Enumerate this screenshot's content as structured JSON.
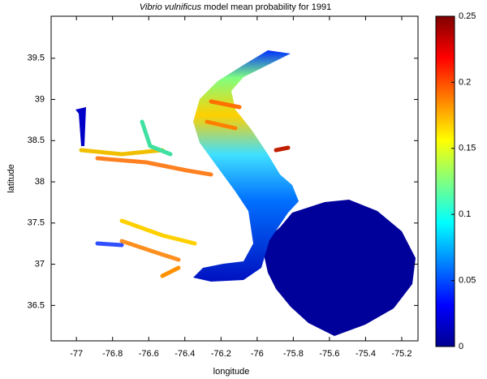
{
  "chart_data": {
    "type": "map",
    "title_parts": [
      "Vibrio vulnificus",
      "model mean probability for 1991"
    ],
    "xlabel": "longitude",
    "ylabel": "latitude",
    "xlim": [
      -77.14,
      -75.11
    ],
    "xticks": [
      -77,
      -76.8,
      -76.6,
      -76.4,
      -76.2,
      -76,
      -75.8,
      -75.6,
      -75.4,
      -75.2
    ],
    "ylim": [
      36.07,
      40.01
    ],
    "yticks": [
      36.5,
      37,
      37.5,
      38,
      38.5,
      39,
      39.5
    ],
    "clim": [
      0,
      0.25
    ],
    "cticks": [
      0,
      0.05,
      0.1,
      0.15,
      0.2,
      0.25
    ],
    "colormap": [
      "#00008f",
      "#0000ff",
      "#0080ff",
      "#00ffff",
      "#80ff80",
      "#ffff00",
      "#ff8000",
      "#ff0000",
      "#800000"
    ]
  }
}
